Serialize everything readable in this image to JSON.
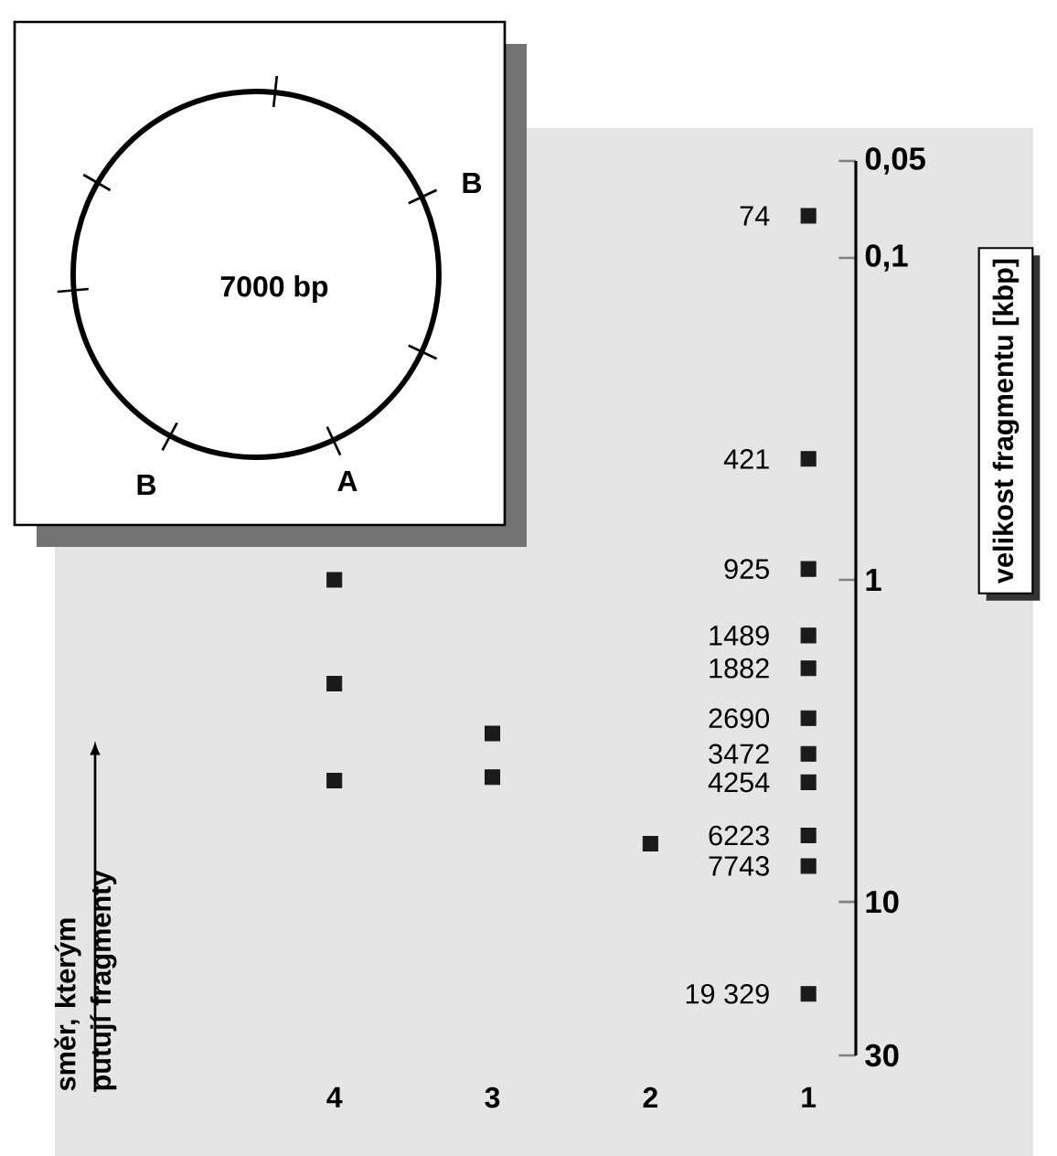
{
  "chart_data": {
    "type": "scatter",
    "marker": "square",
    "categories": [
      "4",
      "3",
      "2",
      "1"
    ],
    "ylim": [
      30,
      0.05
    ],
    "yticks": [
      {
        "value": 0.05,
        "label": "0,05"
      },
      {
        "value": 0.1,
        "label": "0,1"
      },
      1,
      10,
      30
    ],
    "log": "y",
    "ylabel": "velikost fragmentu [kbp]",
    "annotations": [
      "7000 bp",
      "B",
      "B",
      "A",
      "směr, kterým putují fragmenty",
      {
        "text": "74",
        "x": "1",
        "y": 0.074
      },
      {
        "text": "421",
        "x": "1",
        "y": 0.421
      },
      {
        "text": "925",
        "x": "1",
        "y": 0.925
      },
      {
        "text": "1489",
        "x": "1",
        "y": 1.489
      },
      {
        "text": "1882",
        "x": "1",
        "y": 1.882
      },
      {
        "text": "2690",
        "x": "1",
        "y": 2.69
      },
      {
        "text": "3472",
        "x": "1",
        "y": 3.472
      },
      {
        "text": "4254",
        "x": "1",
        "y": 4.254
      },
      {
        "text": "6223",
        "x": "1",
        "y": 6.223
      },
      {
        "text": "7743",
        "x": "1",
        "y": 7.743
      },
      {
        "text": "19 329",
        "x": "1",
        "y": 19.329
      }
    ],
    "series": [
      {
        "color": "#1a1a1a",
        "x": [
          "4",
          "4",
          "4",
          "3",
          "3",
          "2"
        ],
        "values": [
          1.0,
          2.1,
          4.2,
          3.0,
          4.1,
          6.6
        ]
      },
      {
        "color": "#1a1a1a",
        "x": [
          "1",
          "1",
          "1",
          "1",
          "1",
          "1",
          "1",
          "1",
          "1",
          "1",
          "1"
        ],
        "values": [
          0.074,
          0.421,
          0.925,
          1.489,
          1.882,
          2.69,
          3.472,
          4.254,
          6.223,
          7.743,
          19.329
        ]
      }
    ]
  }
}
